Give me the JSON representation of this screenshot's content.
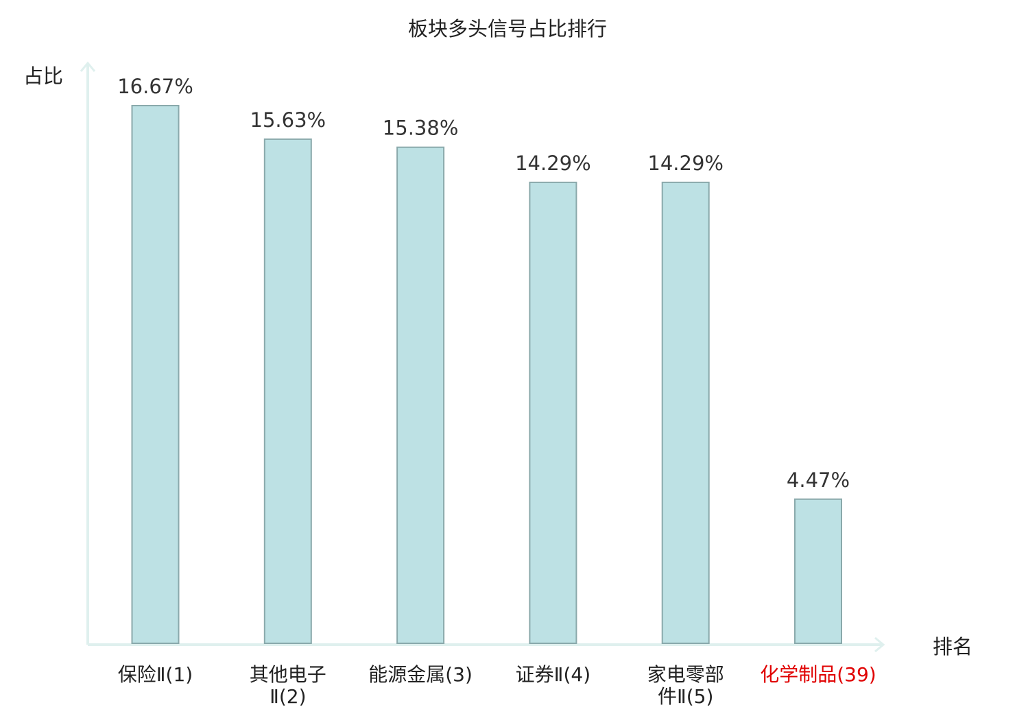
{
  "chart_data": {
    "type": "bar",
    "title": "板块多头信号占比排行",
    "ylabel": "占比",
    "xlabel": "排名",
    "ylim": [
      0,
      18
    ],
    "grid": false,
    "legend": "none",
    "categories": [
      [
        "保险Ⅱ(1)"
      ],
      [
        "其他电子",
        "Ⅱ(2)"
      ],
      [
        "能源金属(3)"
      ],
      [
        "证券Ⅱ(4)"
      ],
      [
        "家电零部",
        "件Ⅱ(5)"
      ],
      [
        "化学制品(39)"
      ]
    ],
    "values": [
      16.67,
      15.63,
      15.38,
      14.29,
      14.29,
      4.47
    ],
    "value_labels": [
      "16.67%",
      "15.63%",
      "15.38%",
      "14.29%",
      "14.29%",
      "4.47%"
    ],
    "highlight_index": 5,
    "colors": {
      "bar_fill": "#bde1e4",
      "bar_stroke": "#8aa9ab",
      "axis": "#dff0ee",
      "text": "#222222",
      "value_text": "#333333",
      "highlight_text": "#e00000"
    }
  }
}
